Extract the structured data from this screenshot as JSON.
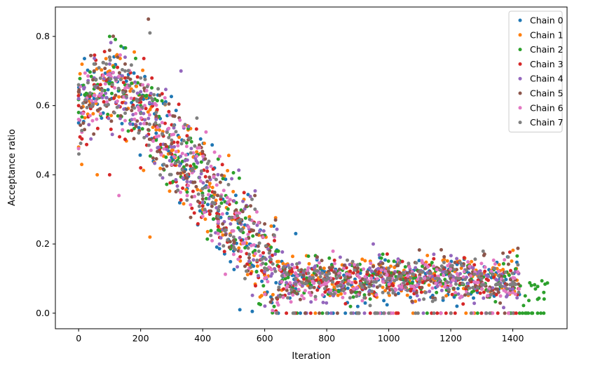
{
  "chart_data": {
    "type": "scatter",
    "xlabel": "Iteration",
    "ylabel": "Acceptance ratio",
    "xlim": [
      -75,
      1575
    ],
    "ylim": [
      -0.045,
      0.885
    ],
    "xticks": [
      0,
      200,
      400,
      600,
      800,
      1000,
      1200,
      1400
    ],
    "yticks": [
      0.0,
      0.2,
      0.4,
      0.6,
      0.8
    ],
    "xtick_labels": [
      "0",
      "200",
      "400",
      "600",
      "800",
      "1000",
      "1200",
      "1400"
    ],
    "ytick_labels": [
      "0.0",
      "0.2",
      "0.4",
      "0.6",
      "0.8"
    ],
    "grid": false,
    "legend_position": "top-right",
    "series": [
      {
        "name": "Chain 0",
        "color": "#1f77b4",
        "n_iter": 1420,
        "points": [
          [
            0,
            0.55
          ],
          [
            50,
            0.62
          ],
          [
            100,
            0.68
          ],
          [
            150,
            0.64
          ],
          [
            200,
            0.58
          ],
          [
            250,
            0.52
          ],
          [
            300,
            0.45
          ],
          [
            350,
            0.36
          ],
          [
            400,
            0.3
          ],
          [
            450,
            0.24
          ],
          [
            500,
            0.18
          ],
          [
            550,
            0.14
          ],
          [
            600,
            0.11
          ],
          [
            650,
            0.09
          ],
          [
            700,
            0.07
          ],
          [
            750,
            0.08
          ],
          [
            800,
            0.09
          ],
          [
            900,
            0.11
          ],
          [
            1000,
            0.1
          ],
          [
            1100,
            0.09
          ],
          [
            1200,
            0.08
          ],
          [
            1300,
            0.07
          ],
          [
            1400,
            0.06
          ],
          [
            520,
            0.01
          ],
          [
            560,
            0.005
          ],
          [
            700,
            0.23
          ],
          [
            1220,
            0.02
          ]
        ]
      },
      {
        "name": "Chain 1",
        "color": "#ff7f0e",
        "n_iter": 1420,
        "points": [
          [
            0,
            0.48
          ],
          [
            10,
            0.43
          ],
          [
            60,
            0.4
          ],
          [
            100,
            0.7
          ],
          [
            150,
            0.66
          ],
          [
            200,
            0.6
          ],
          [
            230,
            0.22
          ],
          [
            250,
            0.53
          ],
          [
            300,
            0.47
          ],
          [
            350,
            0.38
          ],
          [
            400,
            0.31
          ],
          [
            450,
            0.25
          ],
          [
            500,
            0.19
          ],
          [
            550,
            0.14
          ],
          [
            600,
            0.11
          ],
          [
            700,
            0.08
          ],
          [
            800,
            0.09
          ],
          [
            900,
            0.12
          ],
          [
            1000,
            0.11
          ],
          [
            1100,
            0.09
          ],
          [
            1200,
            0.08
          ],
          [
            1300,
            0.07
          ],
          [
            1400,
            0.06
          ]
        ]
      },
      {
        "name": "Chain 2",
        "color": "#2ca02c",
        "n_iter": 1510,
        "points": [
          [
            0,
            0.58
          ],
          [
            50,
            0.72
          ],
          [
            100,
            0.8
          ],
          [
            150,
            0.66
          ],
          [
            200,
            0.6
          ],
          [
            250,
            0.5
          ],
          [
            300,
            0.44
          ],
          [
            350,
            0.35
          ],
          [
            400,
            0.29
          ],
          [
            450,
            0.24
          ],
          [
            500,
            0.2
          ],
          [
            550,
            0.15
          ],
          [
            600,
            0.12
          ],
          [
            700,
            0.08
          ],
          [
            800,
            0.09
          ],
          [
            900,
            0.11
          ],
          [
            1000,
            0.1
          ],
          [
            1100,
            0.09
          ],
          [
            1200,
            0.08
          ],
          [
            1300,
            0.07
          ],
          [
            1400,
            0.06
          ],
          [
            1440,
            0.05
          ],
          [
            1460,
            0.08
          ],
          [
            1480,
            0.04
          ],
          [
            1500,
            0.06
          ],
          [
            1450,
            0.0
          ],
          [
            1480,
            0.0
          ],
          [
            1500,
            0.0
          ]
        ]
      },
      {
        "name": "Chain 3",
        "color": "#d62728",
        "n_iter": 1420,
        "points": [
          [
            0,
            0.6
          ],
          [
            50,
            0.66
          ],
          [
            100,
            0.74
          ],
          [
            150,
            0.68
          ],
          [
            200,
            0.62
          ],
          [
            250,
            0.54
          ],
          [
            300,
            0.46
          ],
          [
            350,
            0.37
          ],
          [
            400,
            0.31
          ],
          [
            450,
            0.25
          ],
          [
            500,
            0.19
          ],
          [
            550,
            0.15
          ],
          [
            600,
            0.12
          ],
          [
            700,
            0.09
          ],
          [
            800,
            0.1
          ],
          [
            900,
            0.12
          ],
          [
            1000,
            0.11
          ],
          [
            1100,
            0.1
          ],
          [
            1200,
            0.09
          ],
          [
            1300,
            0.08
          ],
          [
            1400,
            0.07
          ],
          [
            100,
            0.4
          ],
          [
            200,
            0.42
          ]
        ]
      },
      {
        "name": "Chain 4",
        "color": "#9467bd",
        "n_iter": 1420,
        "points": [
          [
            0,
            0.62
          ],
          [
            50,
            0.68
          ],
          [
            100,
            0.72
          ],
          [
            150,
            0.74
          ],
          [
            200,
            0.64
          ],
          [
            250,
            0.56
          ],
          [
            300,
            0.48
          ],
          [
            330,
            0.7
          ],
          [
            350,
            0.38
          ],
          [
            400,
            0.32
          ],
          [
            450,
            0.26
          ],
          [
            500,
            0.2
          ],
          [
            550,
            0.15
          ],
          [
            600,
            0.12
          ],
          [
            700,
            0.09
          ],
          [
            800,
            0.1
          ],
          [
            900,
            0.13
          ],
          [
            950,
            0.2
          ],
          [
            1000,
            0.12
          ],
          [
            1100,
            0.1
          ],
          [
            1200,
            0.09
          ],
          [
            1300,
            0.08
          ],
          [
            1400,
            0.07
          ]
        ]
      },
      {
        "name": "Chain 5",
        "color": "#8c564b",
        "n_iter": 1420,
        "points": [
          [
            0,
            0.64
          ],
          [
            50,
            0.7
          ],
          [
            100,
            0.76
          ],
          [
            150,
            0.72
          ],
          [
            200,
            0.66
          ],
          [
            225,
            0.85
          ],
          [
            250,
            0.57
          ],
          [
            300,
            0.49
          ],
          [
            350,
            0.39
          ],
          [
            400,
            0.33
          ],
          [
            450,
            0.27
          ],
          [
            500,
            0.21
          ],
          [
            550,
            0.16
          ],
          [
            600,
            0.13
          ],
          [
            700,
            0.1
          ],
          [
            800,
            0.11
          ],
          [
            900,
            0.13
          ],
          [
            1000,
            0.12
          ],
          [
            1100,
            0.11
          ],
          [
            1200,
            0.1
          ],
          [
            1300,
            0.09
          ],
          [
            1400,
            0.08
          ]
        ]
      },
      {
        "name": "Chain 6",
        "color": "#e377c2",
        "n_iter": 1420,
        "points": [
          [
            0,
            0.56
          ],
          [
            50,
            0.63
          ],
          [
            100,
            0.69
          ],
          [
            130,
            0.34
          ],
          [
            150,
            0.65
          ],
          [
            200,
            0.59
          ],
          [
            250,
            0.51
          ],
          [
            300,
            0.43
          ],
          [
            350,
            0.34
          ],
          [
            400,
            0.28
          ],
          [
            450,
            0.23
          ],
          [
            500,
            0.17
          ],
          [
            550,
            0.13
          ],
          [
            600,
            0.1
          ],
          [
            700,
            0.08
          ],
          [
            800,
            0.09
          ],
          [
            900,
            0.11
          ],
          [
            1000,
            0.1
          ],
          [
            1100,
            0.09
          ],
          [
            1200,
            0.08
          ],
          [
            1300,
            0.07
          ],
          [
            1400,
            0.06
          ]
        ]
      },
      {
        "name": "Chain 7",
        "color": "#7f7f7f",
        "n_iter": 1420,
        "points": [
          [
            0,
            0.66
          ],
          [
            50,
            0.72
          ],
          [
            100,
            0.74
          ],
          [
            150,
            0.7
          ],
          [
            200,
            0.68
          ],
          [
            230,
            0.81
          ],
          [
            250,
            0.58
          ],
          [
            300,
            0.5
          ],
          [
            350,
            0.4
          ],
          [
            400,
            0.34
          ],
          [
            450,
            0.28
          ],
          [
            500,
            0.22
          ],
          [
            550,
            0.17
          ],
          [
            600,
            0.13
          ],
          [
            700,
            0.1
          ],
          [
            800,
            0.11
          ],
          [
            900,
            0.14
          ],
          [
            1000,
            0.13
          ],
          [
            1100,
            0.12
          ],
          [
            1200,
            0.11
          ],
          [
            1300,
            0.1
          ],
          [
            1400,
            0.09
          ],
          [
            800,
            0.0
          ],
          [
            1000,
            0.0
          ],
          [
            1200,
            0.0
          ],
          [
            1400,
            0.0
          ]
        ]
      }
    ]
  }
}
